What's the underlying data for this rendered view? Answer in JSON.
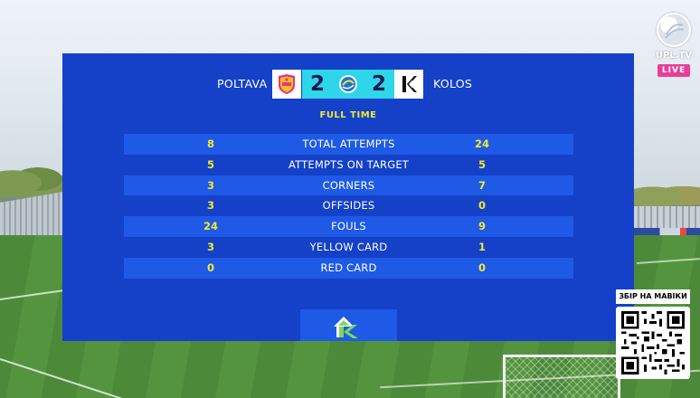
{
  "match": {
    "home_team": "POLTAVA",
    "away_team": "KOLOS",
    "home_score": "2",
    "away_score": "2",
    "status": "FULL TIME"
  },
  "stats": [
    {
      "home": "8",
      "label": "TOTAL ATTEMPTS",
      "away": "24"
    },
    {
      "home": "5",
      "label": "ATTEMPTS ON TARGET",
      "away": "5"
    },
    {
      "home": "3",
      "label": "CORNERS",
      "away": "7"
    },
    {
      "home": "3",
      "label": "OFFSIDES",
      "away": "0"
    },
    {
      "home": "24",
      "label": "FOULS",
      "away": "9"
    },
    {
      "home": "3",
      "label": "YELLOW CARD",
      "away": "1"
    },
    {
      "home": "0",
      "label": "RED CARD",
      "away": "0"
    }
  ],
  "broadcaster": {
    "name": "UPL.TV",
    "live_label": "LIVE"
  },
  "fundraiser": {
    "label": "ЗБІР НА МАВІКИ"
  },
  "icons": {
    "home_crest": "poltava-crest-icon",
    "away_crest": "kolos-crest-icon",
    "league": "upl-league-icon",
    "sponsor": "sponsor-k-icon",
    "qr": "qr-code-icon"
  },
  "colors": {
    "panel": "#1441c8",
    "row_shade": "#1e5ae6",
    "score_box": "#2fd5e8",
    "stat_value": "#f2ea2e",
    "live": "#e83e9a"
  }
}
